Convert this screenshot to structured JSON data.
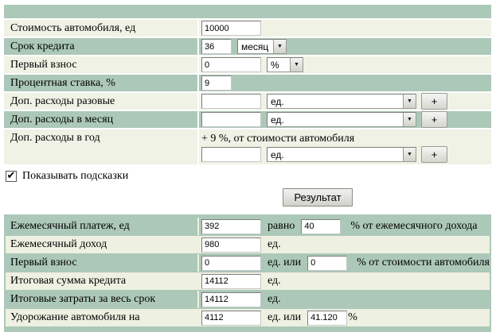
{
  "colors": {
    "green": "#acc8b8",
    "cream": "#eef0e1",
    "light_row": "#f0f2e5"
  },
  "icons": {
    "dropdown_arrow": "▼",
    "checkmark": "✔",
    "plus": "+"
  },
  "form": {
    "rows": [
      {
        "label": "Стоимость автомобиля, ед",
        "value": "10000"
      },
      {
        "label": "Срок кредита",
        "value": "36",
        "unit": "месяц"
      },
      {
        "label": "Первый взнос",
        "value": "0",
        "unit": "%"
      },
      {
        "label": "Процентная ставка, %",
        "value": "9"
      },
      {
        "label": "Доп. расходы разовые",
        "value": "",
        "unit": "ед."
      },
      {
        "label": "Доп. расходы в месяц",
        "value": "",
        "unit": "ед."
      },
      {
        "label": "Доп. расходы в год",
        "note": "+ 9 %, от стоимости автомобиля",
        "value": "",
        "unit": "ед."
      }
    ],
    "show_hints": {
      "label": "Показывать подсказки",
      "checked": true
    },
    "submit_label": "Результат"
  },
  "results": {
    "rows": [
      {
        "label": "Ежемесячный платеж, ед",
        "value": "392",
        "mid": "равно",
        "value2": "40",
        "suffix": "% от ежемесячного дохода"
      },
      {
        "label": "Ежемесячный доход",
        "value": "980",
        "mid": "ед."
      },
      {
        "label": "Первый взнос",
        "value": "0",
        "mid": "ед. или",
        "value2": "0",
        "suffix": "% от стоимости автомобиля"
      },
      {
        "label": "Итоговая сумма кредита",
        "value": "14112",
        "mid": "ед."
      },
      {
        "label": "Итоговые затраты за весь срок",
        "value": "14112",
        "mid": "ед."
      },
      {
        "label": "Удорожание автомобиля на",
        "value": "4112",
        "mid": "ед. или",
        "value2": "41.120",
        "suffix": "%"
      }
    ]
  }
}
